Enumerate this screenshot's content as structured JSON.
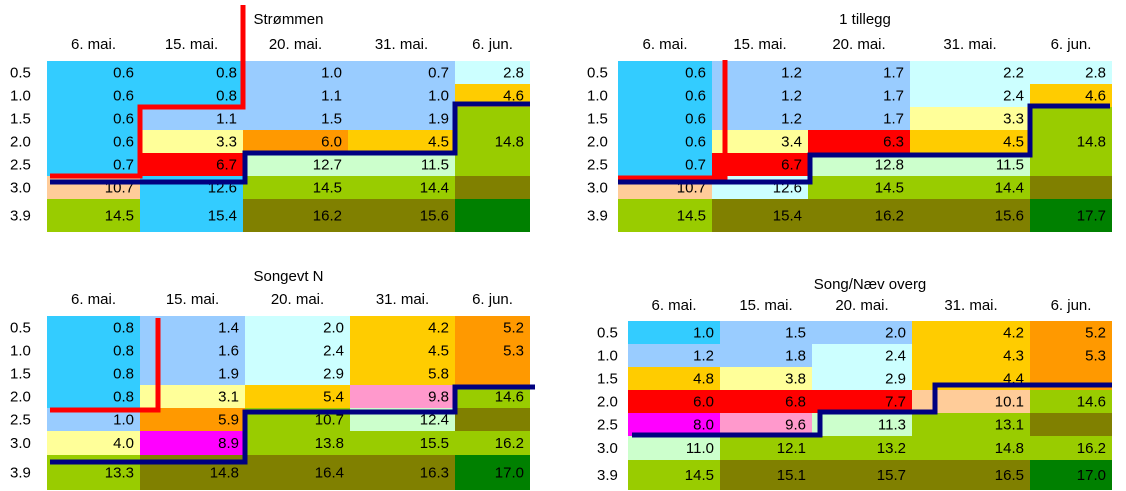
{
  "panels": [
    {
      "title": "Strømmen",
      "columns": [
        "6. mai.",
        "15. mai.",
        "20. mai.",
        "31. mai.",
        "6. jun."
      ],
      "rows": [
        {
          "label": "0.5",
          "values": [
            "0.6",
            "0.8",
            "1.0",
            "0.7",
            "2.8"
          ],
          "colors": [
            "#33ccff",
            "#33ccff",
            "#99ccff",
            "#99ccff",
            "#ccffff"
          ]
        },
        {
          "label": "1.0",
          "values": [
            "0.6",
            "0.8",
            "1.1",
            "1.0",
            "4.6"
          ],
          "colors": [
            "#33ccff",
            "#33ccff",
            "#99ccff",
            "#99ccff",
            "#ffcc00"
          ]
        },
        {
          "label": "1.5",
          "values": [
            "0.6",
            "1.1",
            "1.5",
            "1.9",
            null
          ],
          "colors": [
            "#33ccff",
            "#99ccff",
            "#99ccff",
            "#99ccff",
            "#99cc00"
          ]
        },
        {
          "label": "2.0",
          "values": [
            "0.6",
            "3.3",
            "6.0",
            "4.5",
            "14.8"
          ],
          "colors": [
            "#33ccff",
            "#ffff99",
            "#ff9900",
            "#ffcc00",
            "#99cc00"
          ]
        },
        {
          "label": "2.5",
          "values": [
            "0.7",
            "6.7",
            "12.7",
            "11.5",
            null
          ],
          "colors": [
            "#33ccff",
            "#ff0000",
            "#ccffcc",
            "#ccffcc",
            "#99cc00"
          ]
        },
        {
          "label": "3.0",
          "values": [
            "10.7",
            "12.6",
            "14.5",
            "14.4",
            null
          ],
          "colors": [
            "#ffcc99",
            "#33ccff",
            "#99cc00",
            "#99cc00",
            "#808000"
          ]
        },
        {
          "label": "3.9",
          "values": [
            "14.5",
            "15.4",
            "16.2",
            "15.6",
            null
          ],
          "colors": [
            "#99cc00",
            "#33ccff",
            "#808000",
            "#808000",
            "#008000"
          ]
        }
      ]
    },
    {
      "title": "1 tillegg",
      "columns": [
        "6. mai.",
        "15. mai.",
        "20. mai.",
        "31. mai.",
        "6. jun."
      ],
      "rows": [
        {
          "label": "0.5",
          "values": [
            "0.6",
            "1.2",
            "1.7",
            "2.2",
            "2.8"
          ],
          "colors": [
            "#33ccff",
            "#99ccff",
            "#99ccff",
            "#ccffff",
            "#ccffff"
          ]
        },
        {
          "label": "1.0",
          "values": [
            "0.6",
            "1.2",
            "1.7",
            "2.4",
            "4.6"
          ],
          "colors": [
            "#33ccff",
            "#99ccff",
            "#99ccff",
            "#ccffff",
            "#ffcc00"
          ]
        },
        {
          "label": "1.5",
          "values": [
            "0.6",
            "1.2",
            "1.7",
            "3.3",
            null
          ],
          "colors": [
            "#33ccff",
            "#99ccff",
            "#99ccff",
            "#ffff99",
            "#99cc00"
          ]
        },
        {
          "label": "2.0",
          "values": [
            "0.6",
            "3.4",
            "6.3",
            "4.5",
            "14.8"
          ],
          "colors": [
            "#33ccff",
            "#ffff99",
            "#ff0000",
            "#ffcc00",
            "#99cc00"
          ]
        },
        {
          "label": "2.5",
          "values": [
            "0.7",
            "6.7",
            "12.8",
            "11.5",
            null
          ],
          "colors": [
            "#33ccff",
            "#ff0000",
            "#ccffcc",
            "#ccffcc",
            "#99cc00"
          ]
        },
        {
          "label": "3.0",
          "values": [
            "10.7",
            "12.6",
            "14.5",
            "14.4",
            null
          ],
          "colors": [
            "#ffcc99",
            "#ccffff",
            "#99cc00",
            "#99cc00",
            "#808000"
          ]
        },
        {
          "label": "3.9",
          "values": [
            "14.5",
            "15.4",
            "16.2",
            "15.6",
            "17.7"
          ],
          "colors": [
            "#99cc00",
            "#808000",
            "#808000",
            "#808000",
            "#008000"
          ]
        }
      ]
    },
    {
      "title": "Songevt N",
      "columns": [
        "6. mai.",
        "15. mai.",
        "20. mai.",
        "31. mai.",
        "6. jun."
      ],
      "rows": [
        {
          "label": "0.5",
          "values": [
            "0.8",
            "1.4",
            "2.0",
            "4.2",
            "5.2"
          ],
          "colors": [
            "#33ccff",
            "#99ccff",
            "#ccffff",
            "#ffcc00",
            "#ff9900"
          ]
        },
        {
          "label": "1.0",
          "values": [
            "0.8",
            "1.6",
            "2.4",
            "4.5",
            "5.3"
          ],
          "colors": [
            "#33ccff",
            "#99ccff",
            "#ccffff",
            "#ffcc00",
            "#ff9900"
          ]
        },
        {
          "label": "1.5",
          "values": [
            "0.8",
            "1.9",
            "2.9",
            "5.8",
            null
          ],
          "colors": [
            "#33ccff",
            "#99ccff",
            "#ccffff",
            "#ffcc00",
            "#ff9900"
          ]
        },
        {
          "label": "2.0",
          "values": [
            "0.8",
            "3.1",
            "5.4",
            "9.8",
            "14.6"
          ],
          "colors": [
            "#33ccff",
            "#ffff99",
            "#ffcc00",
            "#ff99cc",
            "#99cc00"
          ]
        },
        {
          "label": "2.5",
          "values": [
            "1.0",
            "5.9",
            "10.7",
            "12.4",
            null
          ],
          "colors": [
            "#99ccff",
            "#ff9900",
            "#99cc00",
            "#ccffcc",
            "#808000"
          ]
        },
        {
          "label": "3.0",
          "values": [
            "4.0",
            "8.9",
            "13.8",
            "15.5",
            "16.2"
          ],
          "colors": [
            "#ffff99",
            "#ff00ff",
            "#99cc00",
            "#99cc00",
            "#99cc00"
          ]
        },
        {
          "label": "3.9",
          "values": [
            "13.3",
            "14.8",
            "16.4",
            "16.3",
            "17.0"
          ],
          "colors": [
            "#99cc00",
            "#808000",
            "#808000",
            "#808000",
            "#008000"
          ]
        }
      ]
    },
    {
      "title": "Song/Næv overg",
      "columns": [
        "6. mai.",
        "15. mai.",
        "20. mai.",
        "31. mai.",
        "6. jun."
      ],
      "rows": [
        {
          "label": "0.5",
          "values": [
            "1.0",
            "1.5",
            "2.0",
            "4.2",
            "5.2"
          ],
          "colors": [
            "#33ccff",
            "#99ccff",
            "#99ccff",
            "#ffcc00",
            "#ff9900"
          ]
        },
        {
          "label": "1.0",
          "values": [
            "1.2",
            "1.8",
            "2.4",
            "4.3",
            "5.3"
          ],
          "colors": [
            "#99ccff",
            "#99ccff",
            "#ccffff",
            "#ffcc00",
            "#ff9900"
          ]
        },
        {
          "label": "1.5",
          "values": [
            "4.8",
            "3.8",
            "2.9",
            "4.4",
            null
          ],
          "colors": [
            "#ffcc00",
            "#ffff99",
            "#ccffff",
            "#ffcc00",
            "#ff9900"
          ]
        },
        {
          "label": "2.0",
          "values": [
            "6.0",
            "6.8",
            "7.7",
            "10.1",
            "14.6"
          ],
          "colors": [
            "#ff0000",
            "#ff0000",
            "#ff0000",
            "#ffcc99",
            "#99cc00"
          ]
        },
        {
          "label": "2.5",
          "values": [
            "8.0",
            "9.6",
            "11.3",
            "13.1",
            null
          ],
          "colors": [
            "#ff00ff",
            "#ff99cc",
            "#ccffcc",
            "#99cc00",
            "#808000"
          ]
        },
        {
          "label": "3.0",
          "values": [
            "11.0",
            "12.1",
            "13.2",
            "14.8",
            "16.2"
          ],
          "colors": [
            "#ccffcc",
            "#99cc00",
            "#99cc00",
            "#99cc00",
            "#99cc00"
          ]
        },
        {
          "label": "3.9",
          "values": [
            "14.5",
            "15.1",
            "15.7",
            "16.5",
            "17.0"
          ],
          "colors": [
            "#99cc00",
            "#808000",
            "#808000",
            "#808000",
            "#008000"
          ]
        }
      ]
    }
  ]
}
